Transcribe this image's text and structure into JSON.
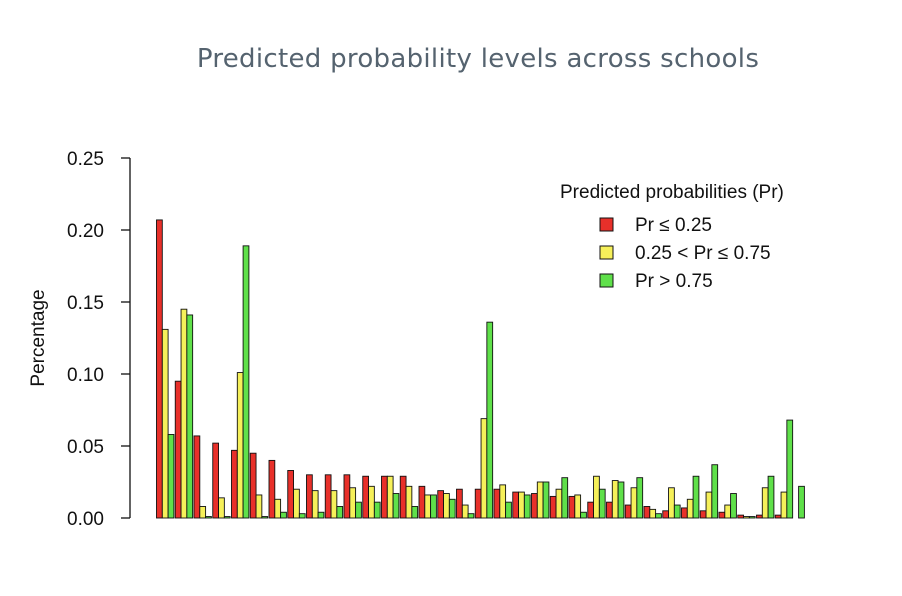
{
  "page": {
    "title": "Predicted probability levels across schools"
  },
  "chart_data": {
    "type": "bar",
    "title": "Predicted probability levels across schools",
    "xlabel": "",
    "ylabel": "Percentage",
    "ylim": [
      0,
      0.25
    ],
    "yticks": [
      0.0,
      0.05,
      0.1,
      0.15,
      0.2,
      0.25
    ],
    "ytick_labels": [
      "0.00",
      "0.05",
      "0.10",
      "0.15",
      "0.20",
      "0.25"
    ],
    "grid": false,
    "legend": {
      "title": "Predicted probabilities (Pr)",
      "placement": "top-right"
    },
    "series": [
      {
        "name": "Pr ≤ 0.25",
        "color": "#e8302a",
        "values": [
          0.207,
          0.095,
          0.057,
          0.052,
          0.047,
          0.045,
          0.04,
          0.033,
          0.03,
          0.03,
          0.03,
          0.029,
          0.029,
          0.029,
          0.022,
          0.019,
          0.02,
          0.02,
          0.02,
          0.018,
          0.017,
          0.015,
          0.015,
          0.011,
          0.011,
          0.009,
          0.008,
          0.005,
          0.007,
          0.005,
          0.004,
          0.002,
          0.002,
          0.002
        ]
      },
      {
        "name": "0.25 < Pr ≤ 0.75",
        "color": "#f6f05a",
        "values": [
          0.131,
          0.145,
          0.008,
          0.014,
          0.101,
          0.016,
          0.013,
          0.02,
          0.019,
          0.019,
          0.021,
          0.022,
          0.029,
          0.022,
          0.016,
          0.017,
          0.009,
          0.069,
          0.023,
          0.018,
          0.025,
          0.02,
          0.016,
          0.029,
          0.026,
          0.021,
          0.006,
          0.021,
          0.013,
          0.018,
          0.009,
          0.001,
          0.021,
          0.018
        ]
      },
      {
        "name": "Pr > 0.75",
        "color": "#5fe04a",
        "values": [
          0.058,
          0.141,
          0.001,
          0.001,
          0.189,
          0.001,
          0.004,
          0.003,
          0.004,
          0.008,
          0.011,
          0.011,
          0.017,
          0.008,
          0.016,
          0.013,
          0.003,
          0.136,
          0.011,
          0.016,
          0.025,
          0.028,
          0.004,
          0.02,
          0.025,
          0.028,
          0.003,
          0.009,
          0.029,
          0.037,
          0.017,
          0.001,
          0.029,
          0.068
        ]
      }
    ],
    "extra_green_bar_value": 0.022
  }
}
